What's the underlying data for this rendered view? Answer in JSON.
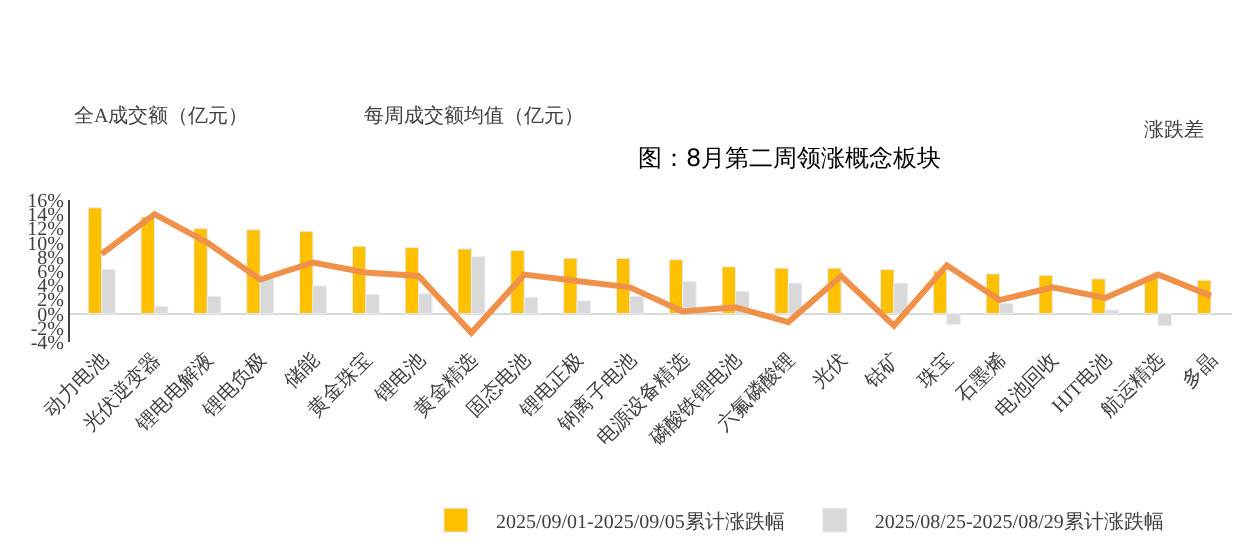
{
  "chart_data": {
    "type": "bar",
    "title": "图：8月第二周领涨概念板块",
    "categories": [
      "动力电池",
      "光伏逆变器",
      "锂电电解液",
      "锂电负极",
      "储能",
      "黄金珠宝",
      "锂电池",
      "黄金精选",
      "固态电池",
      "锂电正极",
      "钠离子电池",
      "电源设备精选",
      "磷酸铁锂电池",
      "六氟磷酸锂",
      "光伏",
      "钴矿",
      "珠宝",
      "石墨烯",
      "电池回收",
      "HJT电池",
      "航运精选",
      "多晶"
    ],
    "series": [
      {
        "name": "2025/09/01-2025/09/05累计涨跌幅",
        "color": "#ffc000",
        "values": [
          14.9,
          13.6,
          12.0,
          11.8,
          11.6,
          9.5,
          9.3,
          9.1,
          8.9,
          7.8,
          7.8,
          7.6,
          6.6,
          6.4,
          6.4,
          6.2,
          6.0,
          5.6,
          5.4,
          4.9,
          5.2,
          4.7
        ]
      },
      {
        "name": "2025/08/25-2025/08/29累计涨跌幅",
        "color": "#d9d9d9",
        "values": [
          6.2,
          1.0,
          2.4,
          4.9,
          3.9,
          2.7,
          2.8,
          8.0,
          2.3,
          1.8,
          2.4,
          4.5,
          3.1,
          4.3,
          null,
          4.3,
          -1.5,
          1.4,
          null,
          0.5,
          -1.7,
          null
        ]
      },
      {
        "type": "line",
        "color": "#f0914a",
        "values": [
          8.4,
          14.0,
          10.0,
          4.8,
          7.2,
          5.8,
          5.3,
          -2.7,
          5.5,
          4.6,
          3.7,
          0.3,
          0.9,
          -1.2,
          5.3,
          -1.7,
          6.8,
          1.9,
          3.7,
          2.2,
          5.5,
          2.5
        ]
      }
    ],
    "ylim": [
      -4,
      16
    ],
    "yticks": [
      {
        "value": -4,
        "label": "-4%"
      },
      {
        "value": -2,
        "label": "-2%"
      },
      {
        "value": 0,
        "label": "0%"
      },
      {
        "value": 2,
        "label": "2%"
      },
      {
        "value": 4,
        "label": "4%"
      },
      {
        "value": 6,
        "label": "6%"
      },
      {
        "value": 8,
        "label": "8%"
      },
      {
        "value": 10,
        "label": "10%"
      },
      {
        "value": 12,
        "label": "12%"
      },
      {
        "value": 14,
        "label": "14%"
      },
      {
        "value": 16,
        "label": "16%"
      }
    ],
    "legend": "bottom",
    "marker": "none",
    "annotations": [
      "全A成交额（亿元）",
      "每周成交额均值（亿元）",
      "涨跌差"
    ]
  }
}
